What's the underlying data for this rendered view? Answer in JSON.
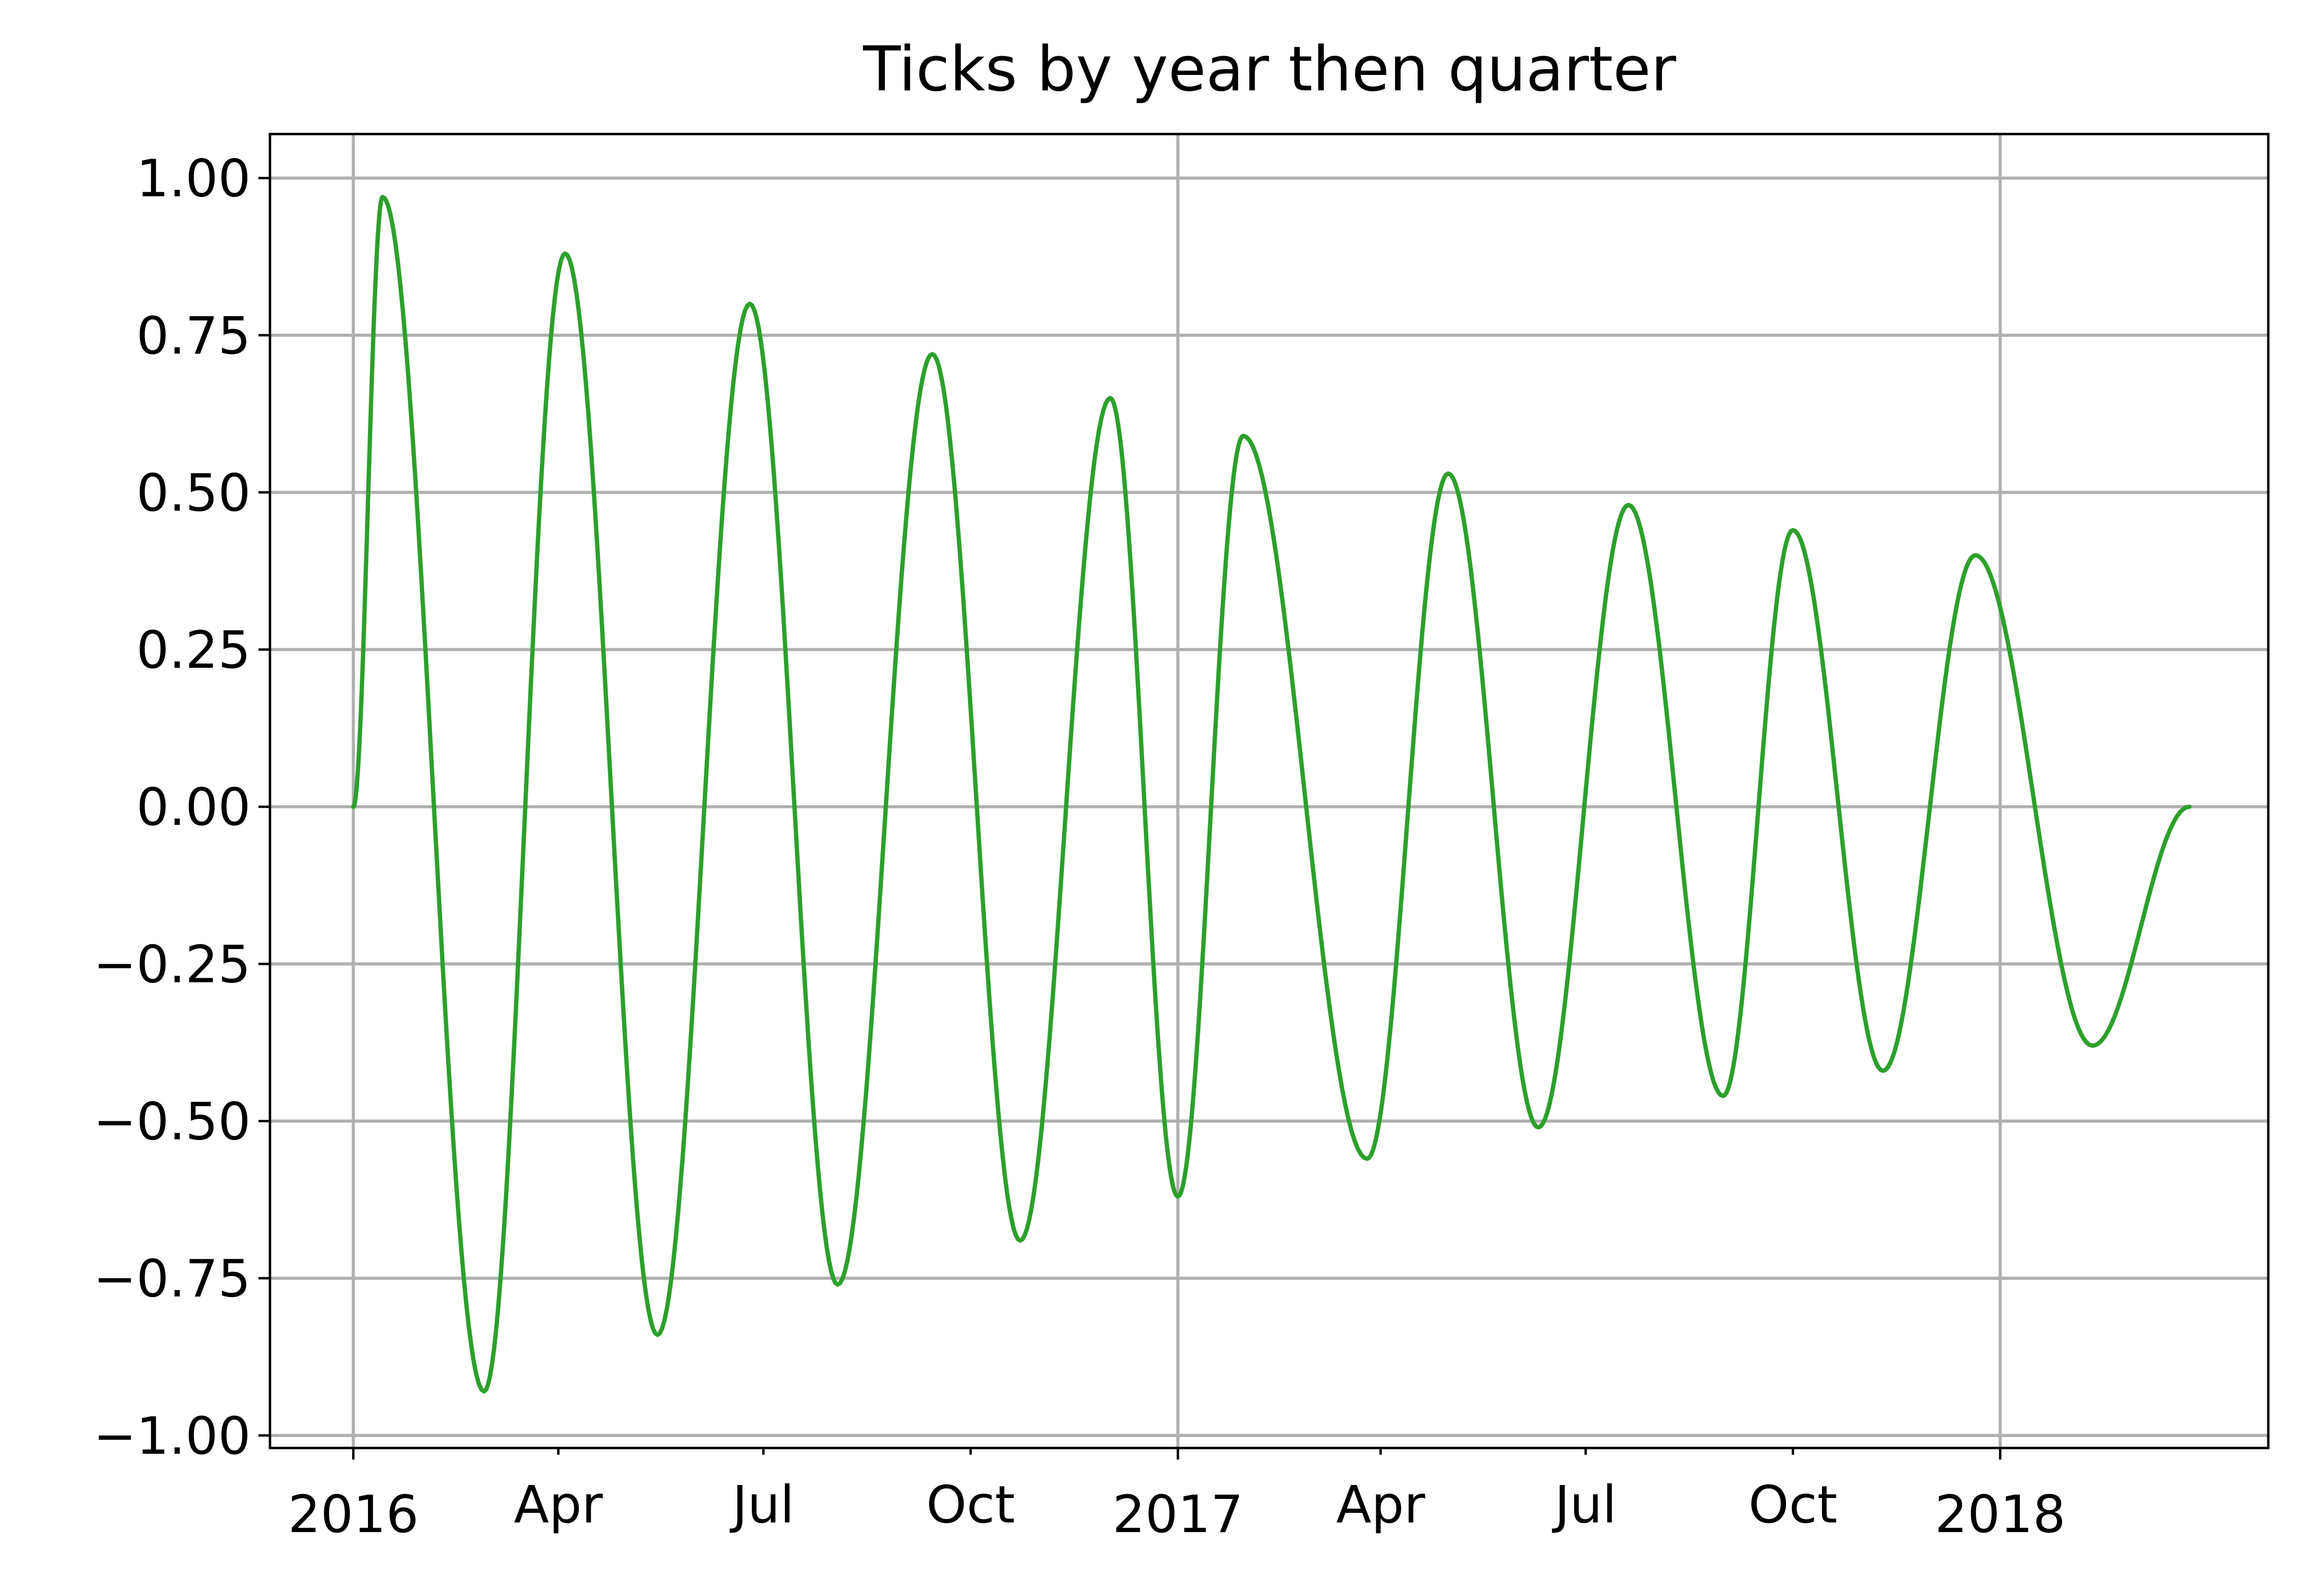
{
  "chart_data": {
    "type": "line",
    "title": "Ticks by year then quarter",
    "xlabel": "",
    "ylabel": "",
    "x_type": "date",
    "xlim": [
      "2015-11-25",
      "2018-04-30"
    ],
    "ylim": [
      -1.02,
      1.07
    ],
    "grid": true,
    "legend": "none",
    "colors": {
      "series": "#2ca02c",
      "grid": "#b0b0b0",
      "axes": "#000000"
    },
    "x_ticks": [
      {
        "date": "2016-01-01",
        "label": "2016",
        "major": true
      },
      {
        "date": "2016-04-01",
        "label": "Apr",
        "major": false
      },
      {
        "date": "2016-07-01",
        "label": "Jul",
        "major": false
      },
      {
        "date": "2016-10-01",
        "label": "Oct",
        "major": false
      },
      {
        "date": "2017-01-01",
        "label": "2017",
        "major": true
      },
      {
        "date": "2017-04-01",
        "label": "Apr",
        "major": false
      },
      {
        "date": "2017-07-01",
        "label": "Jul",
        "major": false
      },
      {
        "date": "2017-10-01",
        "label": "Oct",
        "major": false
      },
      {
        "date": "2018-01-01",
        "label": "2018",
        "major": true
      }
    ],
    "y_ticks": [
      {
        "value": 1.0,
        "label": "1.00"
      },
      {
        "value": 0.75,
        "label": "0.75"
      },
      {
        "value": 0.5,
        "label": "0.50"
      },
      {
        "value": 0.25,
        "label": "0.25"
      },
      {
        "value": 0.0,
        "label": "0.00"
      },
      {
        "value": -0.25,
        "label": "−0.25"
      },
      {
        "value": -0.5,
        "label": "−0.50"
      },
      {
        "value": -0.75,
        "label": "−0.75"
      },
      {
        "value": -1.0,
        "label": "−1.00"
      }
    ],
    "series": [
      {
        "color": "#2ca02c",
        "points": [
          [
            "2016-01-01",
            0.0
          ],
          [
            "2016-01-14",
            0.97
          ],
          [
            "2016-02-28",
            -0.93
          ],
          [
            "2016-04-04",
            0.88
          ],
          [
            "2016-05-15",
            -0.84
          ],
          [
            "2016-06-25",
            0.8
          ],
          [
            "2016-08-03",
            -0.76
          ],
          [
            "2016-09-14",
            0.72
          ],
          [
            "2016-10-23",
            -0.69
          ],
          [
            "2016-12-02",
            0.65
          ],
          [
            "2017-01-01",
            -0.62
          ],
          [
            "2017-01-30",
            0.59
          ],
          [
            "2017-03-26",
            -0.56
          ],
          [
            "2017-05-01",
            0.53
          ],
          [
            "2017-06-10",
            -0.51
          ],
          [
            "2017-07-20",
            0.48
          ],
          [
            "2017-08-31",
            -0.46
          ],
          [
            "2017-10-01",
            0.44
          ],
          [
            "2017-11-10",
            -0.42
          ],
          [
            "2017-12-21",
            0.4
          ],
          [
            "2018-02-11",
            -0.38
          ],
          [
            "2018-03-26",
            0.0
          ]
        ]
      }
    ]
  }
}
